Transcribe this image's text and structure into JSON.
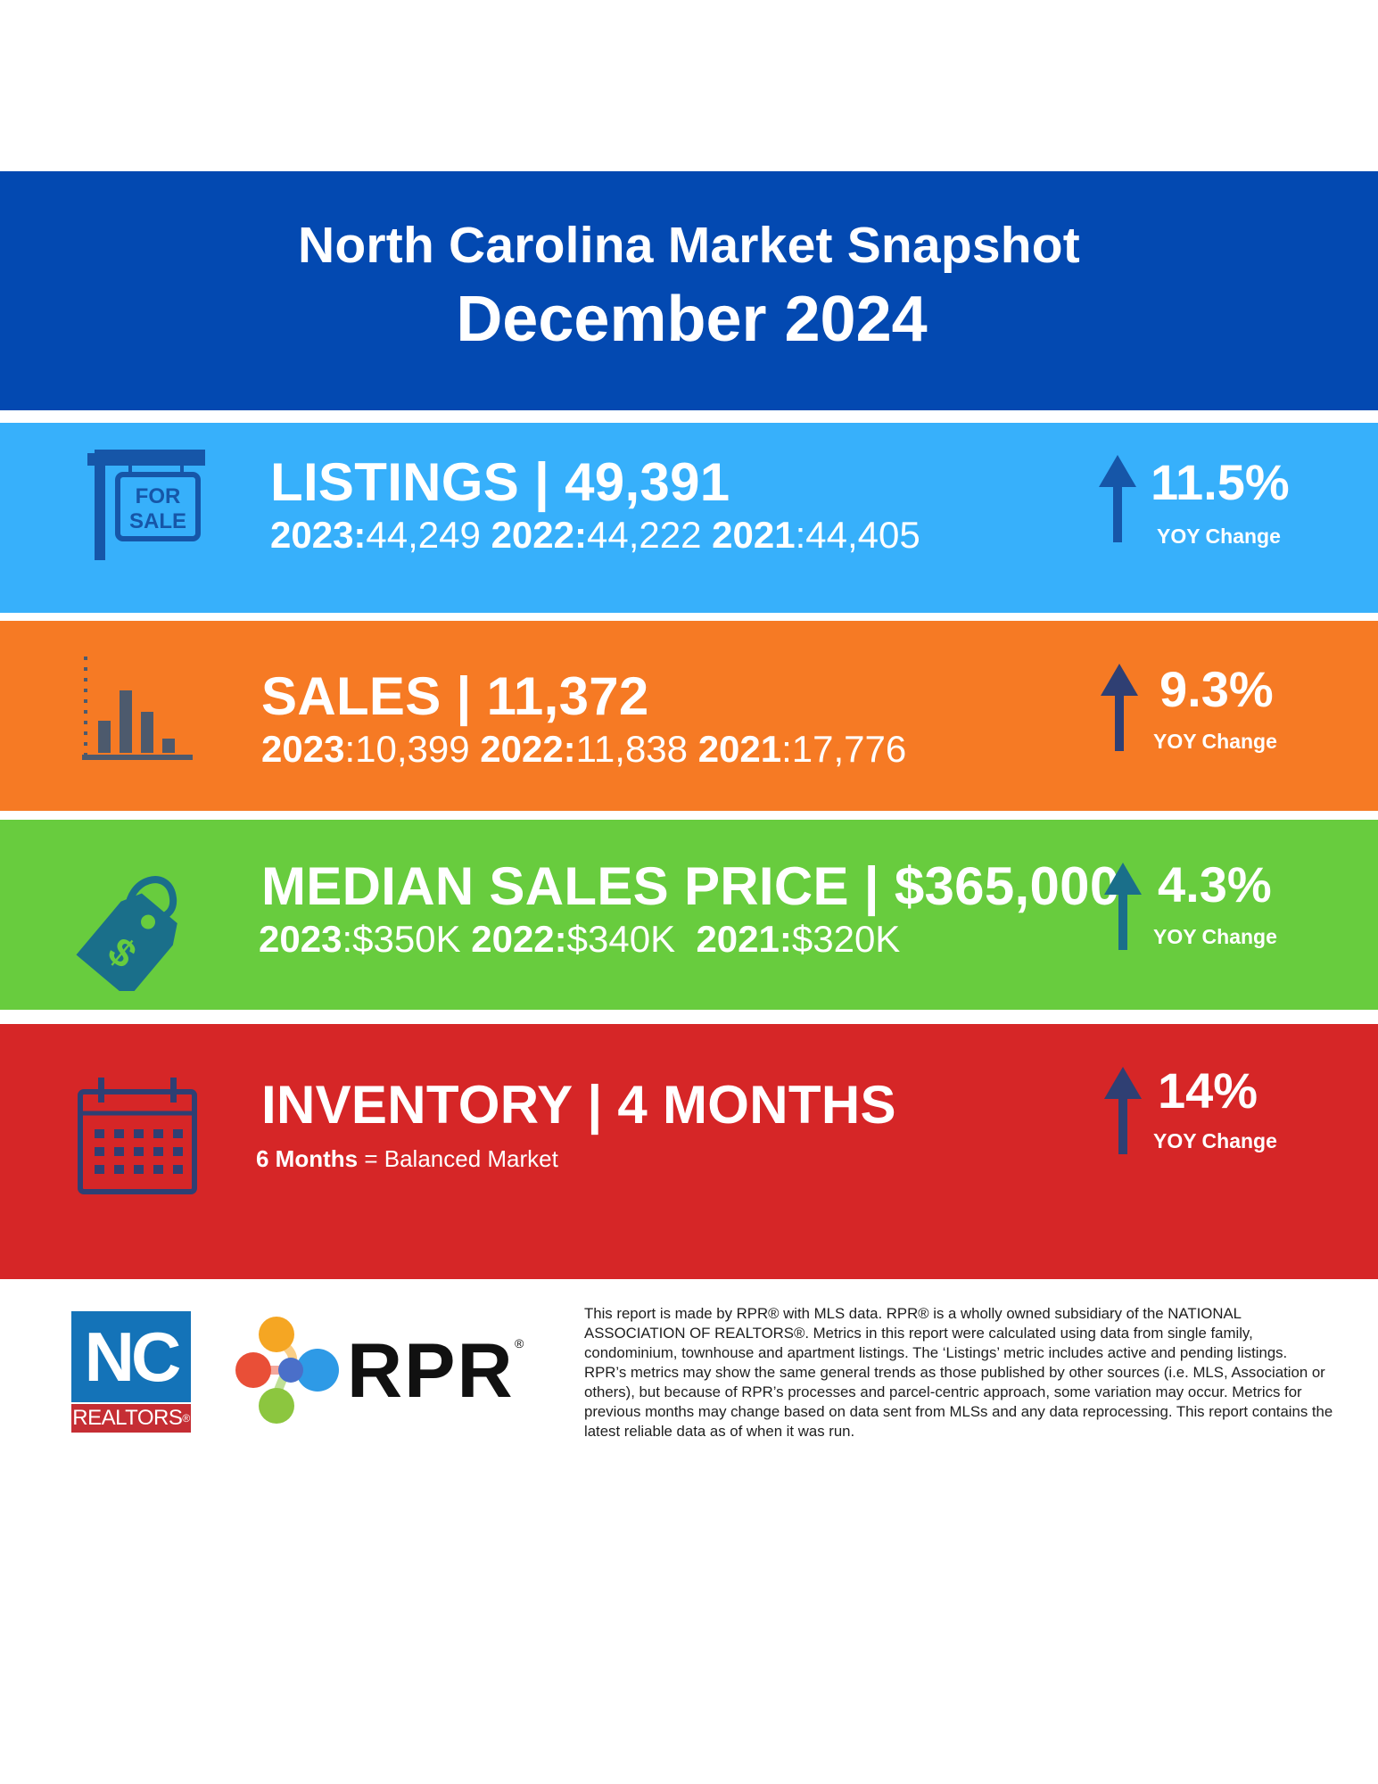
{
  "header": {
    "title": "North Carolina Market Snapshot",
    "date": "December 2024",
    "color": "#0349b1"
  },
  "listings": {
    "title": "LISTINGS | 49,391",
    "y2023_label": "2023:",
    "y2023_value": "44,249",
    "y2022_label": "2022:",
    "y2022_value": "44,222",
    "y2021_label": "2021",
    "y2021_value": ":44,405",
    "yoy_value": "11.5%",
    "yoy_label": "YOY Change",
    "icon_label_1": "FOR",
    "icon_label_2": "SALE",
    "icon": "for-sale-sign-icon",
    "color": "#37b0fb"
  },
  "sales": {
    "title": "SALES | 11,372",
    "y2023_label": "2023",
    "y2023_value": ":10,399",
    "y2022_label": "2022:",
    "y2022_value": "11,838",
    "y2021_label": "2021",
    "y2021_value": ":17,776",
    "yoy_value": "9.3%",
    "yoy_label": "YOY Change",
    "icon": "bar-chart-icon",
    "color": "#f67a24"
  },
  "median_price": {
    "title": "MEDIAN SALES PRICE | $365,000",
    "y2023_label": "2023",
    "y2023_value": ":$350K",
    "y2022_label": "2022:",
    "y2022_value": "$340K",
    "y2021_label": "2021:",
    "y2021_value": "$320K",
    "yoy_value": "4.3%",
    "yoy_label": "YOY Change",
    "icon": "price-tag-icon",
    "icon_symbol": "$",
    "color": "#68cc3e"
  },
  "inventory": {
    "title": "INVENTORY | 4 MONTHS",
    "note_bold": "6 Months",
    "note_rest": " = Balanced Market",
    "yoy_value": "14%",
    "yoy_label": "YOY Change",
    "icon": "calendar-icon",
    "color": "#d62627"
  },
  "logos": {
    "nc_top": "NC",
    "nc_bottom": "REALTORS",
    "nc_bottom_mark": "®",
    "rpr": "RPR",
    "rpr_mark": "®"
  },
  "disclaimer": "This report is made by RPR® with MLS data. RPR® is a wholly owned subsidiary of the NATIONAL ASSOCIATION OF REALTORS®. Metrics in this report were calculated using data from single family, condominium, townhouse and apartment listings. The ‘Listings’ metric includes active and pending listings. RPR’s metrics may show the same general trends as those published by other sources (i.e. MLS, Association or others), but because of RPR’s processes and parcel-centric approach, some variation may occur. Metrics for previous months may change based on data sent from MLSs and any data reprocessing. This report contains the latest reliable data as of when it was run."
}
